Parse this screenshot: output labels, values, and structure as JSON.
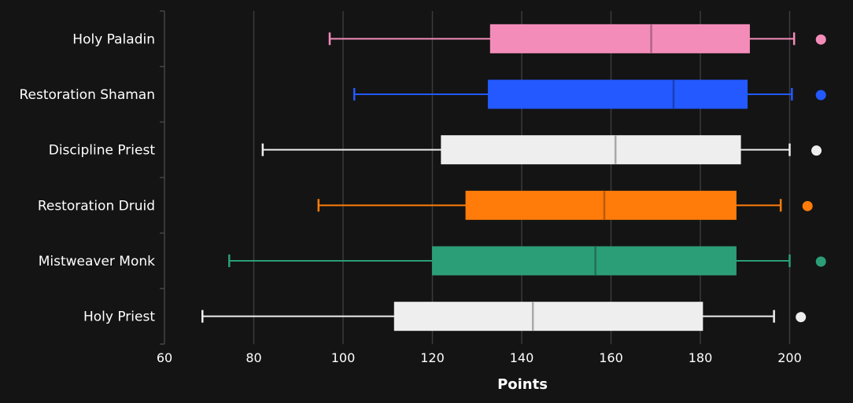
{
  "chart_data": {
    "type": "boxplot",
    "orientation": "horizontal",
    "xlabel": "Points",
    "xlim": [
      60,
      207
    ],
    "xticks": [
      60,
      80,
      100,
      120,
      140,
      160,
      180,
      200
    ],
    "grid": true,
    "categories": [
      "Holy Paladin",
      "Restoration Shaman",
      "Discipline Priest",
      "Restoration Druid",
      "Mistweaver Monk",
      "Holy Priest"
    ],
    "series": [
      {
        "name": "Holy Paladin",
        "color": "#F48CBA",
        "min": 97,
        "q1": 133,
        "median": 169,
        "q3": 191,
        "max": 201,
        "outliers": [
          207
        ]
      },
      {
        "name": "Restoration Shaman",
        "color": "#2359FF",
        "min": 102.5,
        "q1": 132.5,
        "median": 174,
        "q3": 190.5,
        "max": 200.5,
        "outliers": [
          207
        ]
      },
      {
        "name": "Discipline Priest",
        "color": "#EEEEEE",
        "min": 82,
        "q1": 122,
        "median": 161,
        "q3": 189,
        "max": 200,
        "outliers": [
          206
        ]
      },
      {
        "name": "Restoration Druid",
        "color": "#FF7C0A",
        "min": 94.5,
        "q1": 127.5,
        "median": 158.5,
        "q3": 188,
        "max": 198,
        "outliers": [
          204
        ]
      },
      {
        "name": "Mistweaver Monk",
        "color": "#2B9E77",
        "min": 74.5,
        "q1": 120,
        "median": 156.5,
        "q3": 188,
        "max": 200,
        "outliers": [
          207
        ]
      },
      {
        "name": "Holy Priest",
        "color": "#EEEEEE",
        "min": 68.5,
        "q1": 111.5,
        "median": 142.5,
        "q3": 180.5,
        "max": 196.5,
        "outliers": [
          202.5
        ]
      }
    ]
  }
}
